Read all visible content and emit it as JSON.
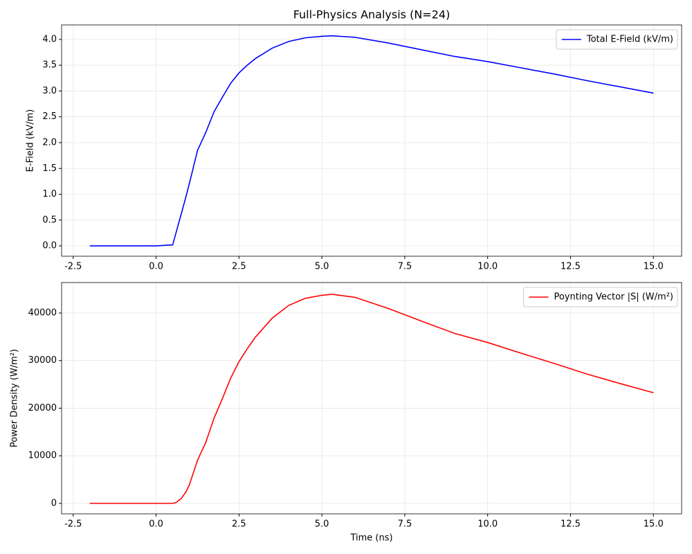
{
  "chart_data": [
    {
      "type": "line",
      "title": "Full-Physics Analysis (N=24)",
      "y_label": "E-Field (kV/m)",
      "x": [
        -2,
        -1,
        0,
        0.5,
        0.6,
        0.75,
        0.9,
        1.0,
        1.25,
        1.5,
        1.75,
        2.0,
        2.25,
        2.5,
        2.75,
        3.0,
        3.5,
        4.0,
        4.5,
        5.0,
        5.3,
        6.0,
        7.0,
        8.0,
        9.0,
        10.0,
        11.0,
        12.0,
        13.0,
        14.0,
        15.0
      ],
      "series": [
        {
          "name": "Total E-Field (kV/m)",
          "color": "#0000ff",
          "values": [
            0,
            0,
            0,
            0.02,
            0.25,
            0.6,
            0.95,
            1.2,
            1.85,
            2.2,
            2.6,
            2.88,
            3.15,
            3.35,
            3.5,
            3.63,
            3.83,
            3.96,
            4.03,
            4.06,
            4.07,
            4.04,
            3.93,
            3.8,
            3.67,
            3.57,
            3.45,
            3.33,
            3.2,
            3.08,
            2.96
          ]
        }
      ],
      "xlim": [
        -2.85,
        15.85
      ],
      "xticks": [
        -2.5,
        {
          "value": 0,
          "label": "0.0"
        },
        2.5,
        {
          "value": 5,
          "label": "5.0"
        },
        7.5,
        {
          "value": 10,
          "label": "10.0"
        },
        12.5,
        {
          "value": 15,
          "label": "15.0"
        }
      ],
      "ylim": [
        -0.2,
        4.28
      ],
      "yticks": [
        {
          "value": 0,
          "label": "0.0"
        },
        0.5,
        {
          "value": 1,
          "label": "1.0"
        },
        1.5,
        {
          "value": 2,
          "label": "2.0"
        },
        2.5,
        {
          "value": 3,
          "label": "3.0"
        },
        3.5,
        {
          "value": 4,
          "label": "4.0"
        }
      ],
      "grid": true,
      "legend": "upper-right"
    },
    {
      "type": "line",
      "x_label": "Time (ns)",
      "y_label": "Power Density (W/m²)",
      "x": [
        -2,
        -1,
        0,
        0.5,
        0.6,
        0.75,
        0.9,
        1.0,
        1.25,
        1.5,
        1.75,
        2.0,
        2.25,
        2.5,
        2.75,
        3.0,
        3.5,
        4.0,
        4.5,
        5.0,
        5.3,
        6.0,
        7.0,
        8.0,
        9.0,
        10.0,
        11.0,
        12.0,
        13.0,
        14.0,
        15.0
      ],
      "series": [
        {
          "name": "Poynting Vector |S| (W/m²)",
          "color": "#ff0000",
          "values": [
            0,
            0,
            0,
            1,
            166,
            955,
            2394,
            3820,
            9078,
            12838,
            17931,
            22001,
            26320,
            29768,
            32493,
            34951,
            38909,
            41595,
            43079,
            43723,
            43939,
            43293,
            40968,
            38302,
            35727,
            33806,
            31572,
            29414,
            27162,
            25163,
            23240
          ]
        }
      ],
      "xlim": [
        -2.85,
        15.85
      ],
      "xticks": [
        -2.5,
        {
          "value": 0,
          "label": "0.0"
        },
        2.5,
        {
          "value": 5,
          "label": "5.0"
        },
        7.5,
        {
          "value": 10,
          "label": "10.0"
        },
        12.5,
        {
          "value": 15,
          "label": "15.0"
        }
      ],
      "ylim": [
        -2200,
        46400
      ],
      "yticks": [
        0,
        10000,
        20000,
        30000,
        40000
      ],
      "grid": true,
      "legend": "upper-right"
    }
  ]
}
